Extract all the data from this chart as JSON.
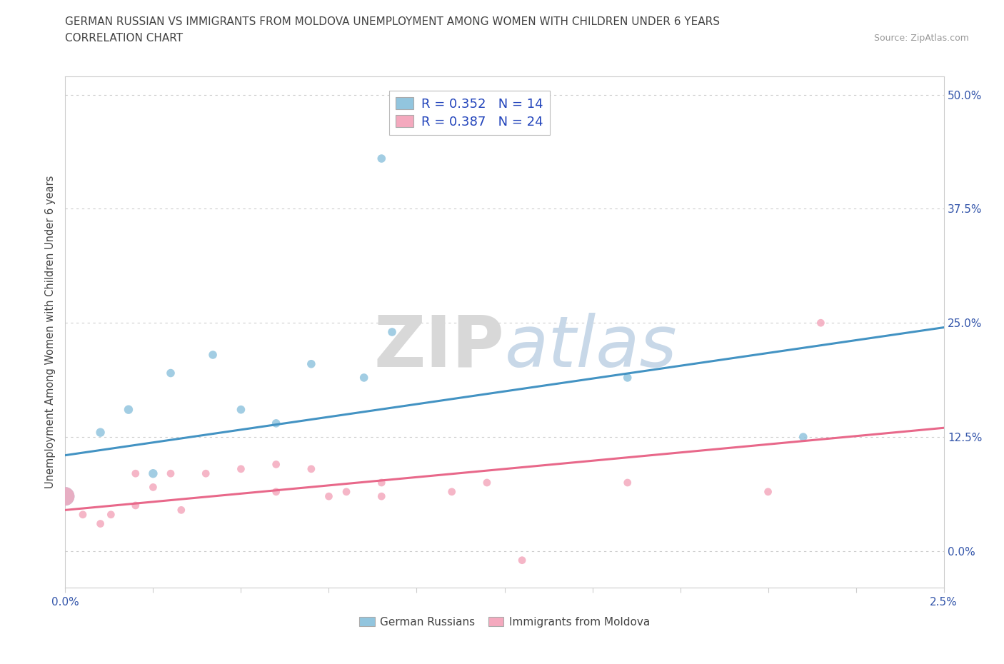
{
  "title_line1": "GERMAN RUSSIAN VS IMMIGRANTS FROM MOLDOVA UNEMPLOYMENT AMONG WOMEN WITH CHILDREN UNDER 6 YEARS",
  "title_line2": "CORRELATION CHART",
  "source": "Source: ZipAtlas.com",
  "ylabel": "Unemployment Among Women with Children Under 6 years",
  "xlim": [
    0.0,
    0.025
  ],
  "ylim": [
    -0.04,
    0.52
  ],
  "yticks": [
    0.0,
    0.125,
    0.25,
    0.375,
    0.5
  ],
  "ytick_labels": [
    "0.0%",
    "12.5%",
    "25.0%",
    "37.5%",
    "50.0%"
  ],
  "legend_r1": "R = 0.352   N = 14",
  "legend_r2": "R = 0.387   N = 24",
  "blue_color": "#92c5de",
  "pink_color": "#f4a9be",
  "blue_line_color": "#4393c3",
  "pink_line_color": "#e8688a",
  "blue_scatter_x": [
    0.0,
    0.001,
    0.0018,
    0.0025,
    0.003,
    0.0042,
    0.005,
    0.006,
    0.007,
    0.0085,
    0.009,
    0.0093,
    0.016,
    0.021
  ],
  "blue_scatter_y": [
    0.06,
    0.13,
    0.155,
    0.085,
    0.195,
    0.215,
    0.155,
    0.14,
    0.205,
    0.19,
    0.43,
    0.24,
    0.19,
    0.125
  ],
  "blue_scatter_size": [
    350,
    80,
    80,
    80,
    70,
    70,
    70,
    70,
    70,
    70,
    70,
    70,
    70,
    70
  ],
  "pink_scatter_x": [
    0.0,
    0.0005,
    0.001,
    0.0013,
    0.002,
    0.002,
    0.0025,
    0.003,
    0.0033,
    0.004,
    0.005,
    0.006,
    0.006,
    0.007,
    0.0075,
    0.008,
    0.009,
    0.009,
    0.011,
    0.012,
    0.013,
    0.016,
    0.02,
    0.0215
  ],
  "pink_scatter_y": [
    0.06,
    0.04,
    0.03,
    0.04,
    0.05,
    0.085,
    0.07,
    0.085,
    0.045,
    0.085,
    0.09,
    0.065,
    0.095,
    0.09,
    0.06,
    0.065,
    0.075,
    0.06,
    0.065,
    0.075,
    -0.01,
    0.075,
    0.065,
    0.25
  ],
  "pink_scatter_size": [
    350,
    60,
    60,
    60,
    60,
    60,
    60,
    60,
    60,
    60,
    60,
    60,
    60,
    60,
    60,
    60,
    60,
    60,
    60,
    60,
    60,
    60,
    60,
    60
  ],
  "blue_trend_x": [
    0.0,
    0.025
  ],
  "blue_trend_y": [
    0.105,
    0.245
  ],
  "pink_trend_x": [
    0.0,
    0.025
  ],
  "pink_trend_y": [
    0.045,
    0.135
  ],
  "watermark_zip": "ZIP",
  "watermark_atlas": "atlas",
  "background_color": "#ffffff",
  "grid_color": "#cccccc",
  "axis_color": "#cccccc",
  "label_color": "#3355aa",
  "text_color": "#444444",
  "source_color": "#999999"
}
